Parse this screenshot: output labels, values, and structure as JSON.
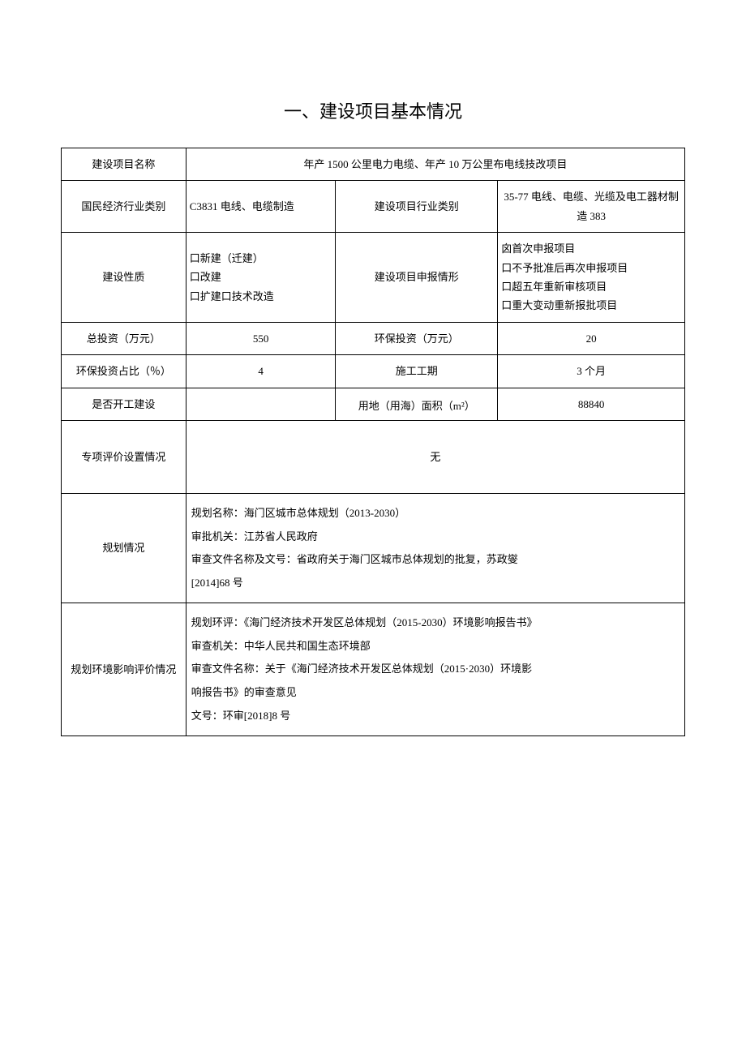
{
  "title": "一、建设项目基本情况",
  "rows": {
    "project_name_label": "建设项目名称",
    "project_name_value": "年产 1500 公里电力电缆、年产 10 万公里布电线技改项目",
    "econ_label": "国民经济行业类别",
    "econ_value": "C3831 电线、电缆制造",
    "industry_label": "建设项目行业类别",
    "industry_value": "35-77 电线、电缆、光缆及电工器材制造 383",
    "nature_label": "建设性质",
    "nature_line1": "口新建（迁建）",
    "nature_line2": "口改建",
    "nature_line3": "口扩建口技术改造",
    "declare_label": "建设项目申报情形",
    "declare_line1": "囟首次申报项目",
    "declare_line2": "口不予批准后再次申报项目",
    "declare_line3": "口超五年重新审核项目",
    "declare_line4": "口重大变动重新报批项目",
    "total_invest_label": "总投资（万元）",
    "total_invest_value": "550",
    "env_invest_label": "环保投资（万元）",
    "env_invest_value": "20",
    "env_ratio_label": "环保投资占比（％）",
    "env_ratio_value": "4",
    "duration_label": "施工工期",
    "duration_value": "3 个月",
    "started_label": "是否开工建设",
    "started_value": "",
    "land_label": "用地（用海）面积（m²）",
    "land_value": "88840",
    "special_label": "专项评价设置情况",
    "special_value": "无",
    "plan_label": "规划情况",
    "plan_line1": "规划名称：海门区城市总体规划（2013-2030）",
    "plan_line2": "审批机关：江苏省人民政府",
    "plan_line3": "审查文件名称及文号：省政府关于海门区城市总体规划的批复，苏政燮",
    "plan_line4": "[2014]68 号",
    "eia_label": "规划环境影响评价情况",
    "eia_line1": "规划环评：《海门经济技术开发区总体规划（2015-2030）环境影响报告书》",
    "eia_line2": "审查机关：中华人民共和国生态环境部",
    "eia_line3": "审查文件名称：关于《海门经济技术开发区总体规划（2015·2030）环境影",
    "eia_line4": "响报告书》的审查意见",
    "eia_line5": "文号：环审[2018]8 号"
  }
}
